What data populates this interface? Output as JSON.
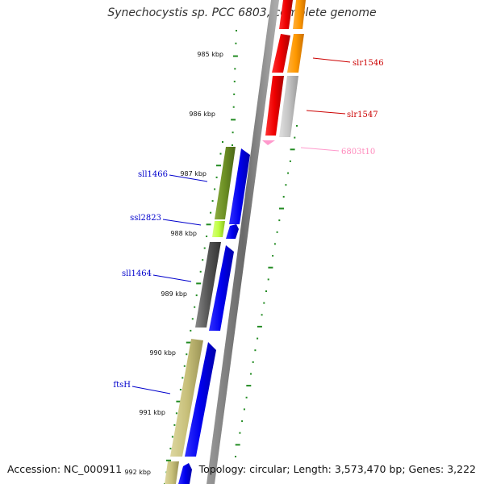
{
  "title": "Synechocystis sp. PCC 6803, complete genome",
  "footer": {
    "accession": "Accession: NC_000911",
    "topology": "Topology: circular; Length: 3,573,470 bp; Genes: 3,222"
  },
  "colors": {
    "forward_cds": "#e00000",
    "orange_cds": "#ff9900",
    "gray_cds": "#c0c0c0",
    "trna": "#ff99cc",
    "reverse_cds": "#0000ee",
    "olive_cds": "#6b8e23",
    "lime_cds": "#bfff40",
    "dark_gray_cds": "#555555",
    "khaki_cds": "#c8c07a",
    "ticks": "#228b22",
    "backbone": "#808080"
  },
  "kbp_ticks": [
    "985 kbp",
    "986 kbp",
    "987 kbp",
    "988 kbp",
    "989 kbp",
    "990 kbp",
    "991 kbp",
    "992 kbp"
  ],
  "gene_labels": [
    {
      "name": "slr1546",
      "color": "#cc0000"
    },
    {
      "name": "slr1547",
      "color": "#cc0000"
    },
    {
      "name": "6803t10",
      "color": "#ff88bb"
    },
    {
      "name": "sll1466",
      "color": "#0000cc"
    },
    {
      "name": "ssl2823",
      "color": "#0000cc"
    },
    {
      "name": "sll1464",
      "color": "#0000cc"
    },
    {
      "name": "ftsH",
      "color": "#0000cc"
    }
  ]
}
